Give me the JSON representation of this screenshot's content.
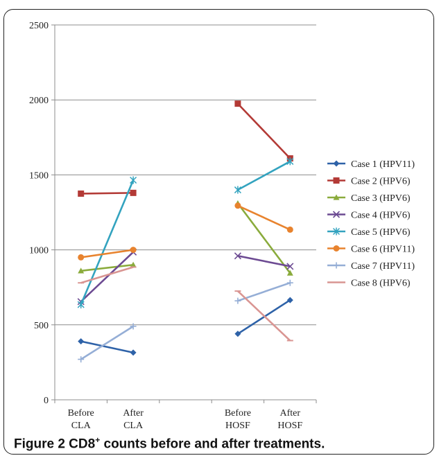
{
  "caption": {
    "prefix": "Figure 2 CD8",
    "superscript": "+",
    "suffix": " counts before and after treatments."
  },
  "chart_data": {
    "type": "line",
    "title": "",
    "xlabel": "",
    "ylabel": "",
    "ylim": [
      0,
      2500
    ],
    "yticks": [
      0,
      500,
      1000,
      1500,
      2000,
      2500
    ],
    "grid": "horizontal",
    "legend_placement": "right",
    "categories": [
      {
        "line1": "Before",
        "line2": "CLA"
      },
      {
        "line1": "After",
        "line2": "CLA"
      },
      {
        "line1": "",
        "line2": ""
      },
      {
        "line1": "Before",
        "line2": "HOSF"
      },
      {
        "line1": "After",
        "line2": "HOSF"
      }
    ],
    "series": [
      {
        "name": "Case 1 (HPV11)",
        "color": "#2e62a8",
        "marker": "diamond",
        "segments": [
          [
            390,
            315
          ],
          [
            440,
            665
          ]
        ]
      },
      {
        "name": "Case 2 (HPV6)",
        "color": "#b33a36",
        "marker": "square",
        "segments": [
          [
            1375,
            1380
          ],
          [
            1975,
            1610
          ]
        ]
      },
      {
        "name": "Case 3 (HPV6)",
        "color": "#8aab3c",
        "marker": "triangle",
        "segments": [
          [
            860,
            900
          ],
          [
            1310,
            845
          ]
        ]
      },
      {
        "name": "Case 4 (HPV6)",
        "color": "#6c4a92",
        "marker": "x",
        "segments": [
          [
            655,
            985
          ],
          [
            960,
            890
          ]
        ]
      },
      {
        "name": "Case 5 (HPV6)",
        "color": "#33a3bf",
        "marker": "star",
        "segments": [
          [
            635,
            1465
          ],
          [
            1400,
            1590
          ]
        ]
      },
      {
        "name": "Case 6 (HPV11)",
        "color": "#e8832e",
        "marker": "circle",
        "segments": [
          [
            950,
            1000
          ],
          [
            1295,
            1135
          ]
        ]
      },
      {
        "name": "Case 7 (HPV11)",
        "color": "#95aed6",
        "marker": "plus",
        "segments": [
          [
            270,
            490
          ],
          [
            660,
            780
          ]
        ]
      },
      {
        "name": "Case 8 (HPV6)",
        "color": "#d99592",
        "marker": "dash",
        "segments": [
          [
            780,
            885
          ],
          [
            725,
            395
          ]
        ]
      }
    ]
  }
}
